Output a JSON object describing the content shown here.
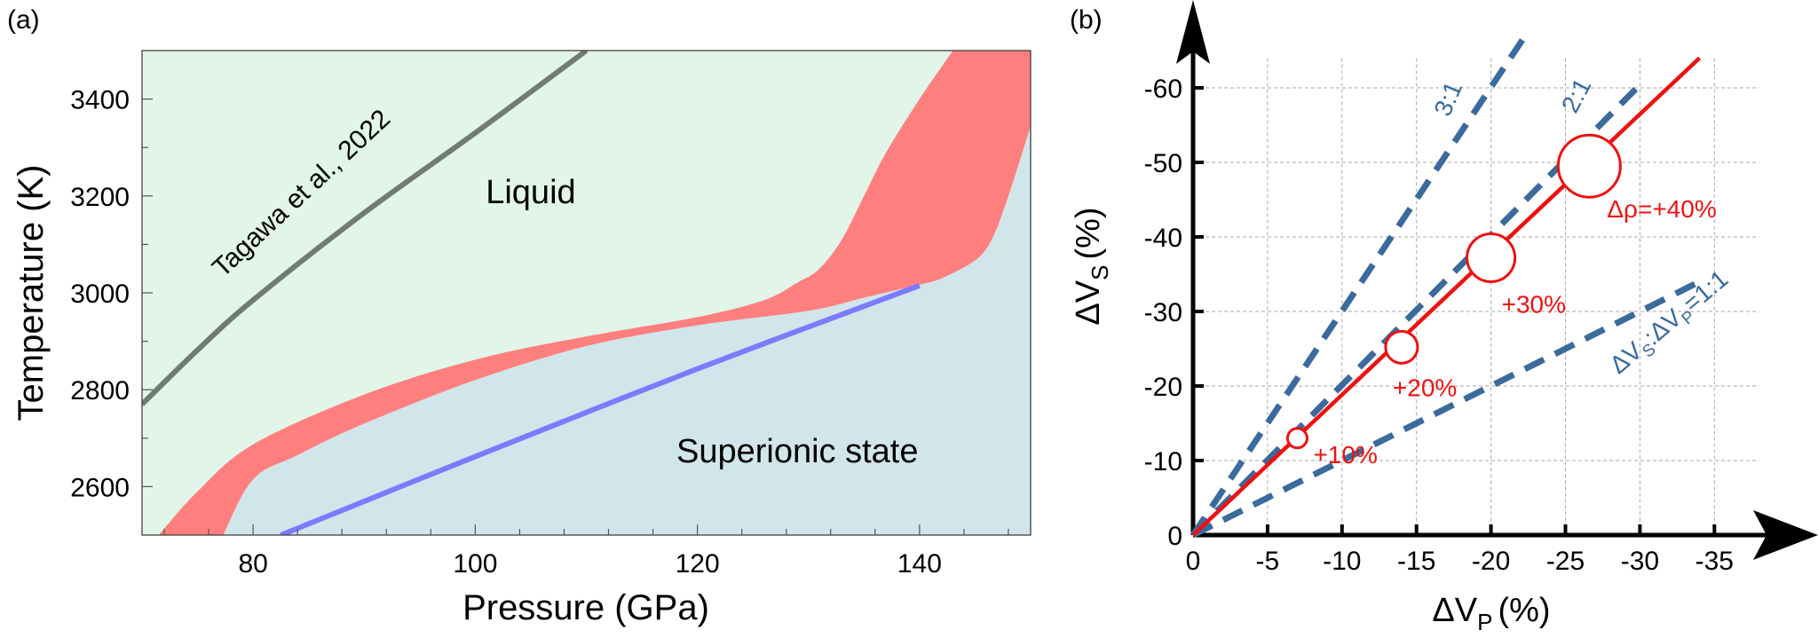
{
  "chart_data": [
    {
      "type": "area",
      "panel_label": "(a)",
      "xlabel": "Pressure (GPa)",
      "ylabel": "Temperature (K)",
      "xlim": [
        70,
        150
      ],
      "ylim": [
        2500,
        3500
      ],
      "xticks": [
        "80",
        "100",
        "120",
        "140"
      ],
      "yticks": [
        "2600",
        "2800",
        "3000",
        "3200",
        "3400"
      ],
      "region_labels": {
        "liquid": "Liquid",
        "superionic": "Superionic state"
      },
      "colors": {
        "liquid": "#e1f5e9",
        "superionic": "#d1e6ea",
        "band": "#ff7f7f",
        "blue_line": "#7a7cff",
        "tagawa": "#727b72"
      },
      "series": [
        {
          "name": "Tagawa et al., 2022",
          "x": [
            70,
            75,
            80,
            90,
            100,
            110
          ],
          "y": [
            2770,
            2882,
            2985,
            3165,
            3330,
            3500
          ]
        },
        {
          "name": "band_upper",
          "x": [
            71.5,
            75,
            80,
            90,
            100,
            110,
            120,
            126,
            129,
            131,
            133,
            135,
            137,
            140,
            143
          ],
          "y": [
            2500,
            2590,
            2687,
            2790,
            2862,
            2910,
            2950,
            2985,
            3021,
            3050,
            3110,
            3200,
            3290,
            3400,
            3500
          ]
        },
        {
          "name": "band_lower",
          "x": [
            77.3,
            80,
            84,
            90,
            100,
            110,
            120,
            130,
            135,
            140,
            142,
            145,
            146.5,
            148,
            150
          ],
          "y": [
            2500,
            2615,
            2665,
            2730,
            2820,
            2890,
            2933,
            2963,
            2990,
            3017,
            3030,
            3067,
            3110,
            3200,
            3344
          ]
        },
        {
          "name": "blue_line",
          "x": [
            82.5,
            100,
            120,
            140
          ],
          "y": [
            2500,
            2662,
            2843,
            3015
          ]
        }
      ]
    },
    {
      "type": "line",
      "panel_label": "(b)",
      "xlabel": "ΔV",
      "xlabel_sub": "P",
      "ylabel": "ΔV",
      "ylabel_sub": "S",
      "unit": "(%)",
      "xlim": [
        0,
        -35
      ],
      "ylim": [
        0,
        -60
      ],
      "xticks": [
        "0",
        "-5",
        "-10",
        "-15",
        "-20",
        "-25",
        "-30",
        "-35"
      ],
      "yticks": [
        "0",
        "-10",
        "-20",
        "-30",
        "-40",
        "-50",
        "-60"
      ],
      "grid": true,
      "colors": {
        "red": "#ee1111",
        "dash": "#3b6a9c"
      },
      "reference_lines": [
        {
          "label": "3:1",
          "x": [
            0,
            -22.3
          ],
          "y": [
            0,
            -67
          ]
        },
        {
          "label": "2:1",
          "x": [
            0,
            -29.8
          ],
          "y": [
            0,
            -60
          ]
        },
        {
          "label": "ΔV",
          "label_parts": [
            "ΔV",
            "S",
            ":ΔV",
            "P",
            "=1:1"
          ],
          "x": [
            0,
            -34
          ],
          "y": [
            0,
            -34
          ]
        }
      ],
      "main_line": {
        "x": [
          0,
          -34
        ],
        "y": [
          0,
          -64
        ]
      },
      "points": [
        {
          "label": "+10%",
          "x": -7.0,
          "y": -13.0
        },
        {
          "label": "+20%",
          "x": -14.0,
          "y": -25.2
        },
        {
          "label": "+30%",
          "x": -20.0,
          "y": -37.2
        },
        {
          "label": "Δρ=+40%",
          "x": -26.6,
          "y": -49.5
        }
      ]
    }
  ]
}
